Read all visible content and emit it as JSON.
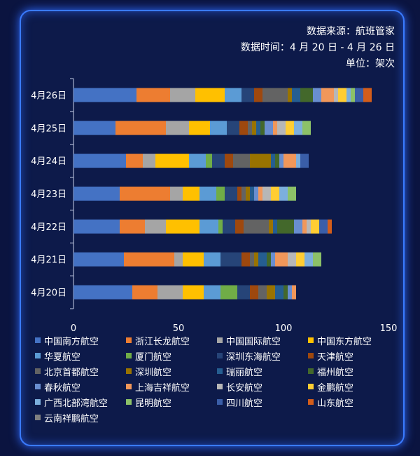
{
  "meta": {
    "source": "数据来源：航班管家",
    "period": "数据时间：4 月 20 日 - 4 月 26 日",
    "unit": "单位：架次"
  },
  "chart_data": {
    "type": "bar",
    "orientation": "horizontal",
    "stacked": true,
    "title": "",
    "xlabel": "",
    "ylabel": "",
    "xlim": [
      0,
      150
    ],
    "xticks": [
      0,
      50,
      100,
      150
    ],
    "grid": false,
    "legend_position": "bottom",
    "categories": [
      "4月26日",
      "4月25日",
      "4月24日",
      "4月23日",
      "4月22日",
      "4月21日",
      "4月20日"
    ],
    "series": [
      {
        "name": "中国南方航空",
        "color": "#4472c4",
        "values": [
          30,
          20,
          25,
          22,
          22,
          24,
          28
        ]
      },
      {
        "name": "浙江长龙航空",
        "color": "#ed7d31",
        "values": [
          16,
          24,
          8,
          24,
          12,
          24,
          12
        ]
      },
      {
        "name": "中国国际航空",
        "color": "#a5a5a5",
        "values": [
          12,
          11,
          6,
          6,
          10,
          4,
          12
        ]
      },
      {
        "name": "中国东方航空",
        "color": "#ffc000",
        "values": [
          14,
          10,
          16,
          8,
          16,
          10,
          10
        ]
      },
      {
        "name": "华夏航空",
        "color": "#5b9bd5",
        "values": [
          8,
          8,
          8,
          8,
          9,
          8,
          8
        ]
      },
      {
        "name": "厦门航空",
        "color": "#70ad47",
        "values": [
          0,
          0,
          3,
          4,
          2,
          0,
          8
        ]
      },
      {
        "name": "深圳东海航空",
        "color": "#264478",
        "values": [
          6,
          6,
          6,
          6,
          6,
          10,
          6
        ]
      },
      {
        "name": "天津航空",
        "color": "#9e480e",
        "values": [
          4,
          4,
          4,
          2,
          4,
          4,
          4
        ]
      },
      {
        "name": "北京首都航空",
        "color": "#636363",
        "values": [
          12,
          2,
          8,
          2,
          12,
          2,
          4
        ]
      },
      {
        "name": "深圳航空",
        "color": "#997300",
        "values": [
          2,
          2,
          10,
          2,
          2,
          2,
          4
        ]
      },
      {
        "name": "瑞丽航空",
        "color": "#255e91",
        "values": [
          4,
          2,
          2,
          2,
          2,
          4,
          4
        ]
      },
      {
        "name": "福州航空",
        "color": "#43682b",
        "values": [
          6,
          2,
          2,
          0,
          8,
          2,
          2
        ]
      },
      {
        "name": "春秋航空",
        "color": "#698ed0",
        "values": [
          4,
          4,
          2,
          2,
          4,
          2,
          2
        ]
      },
      {
        "name": "上海吉祥航空",
        "color": "#f1975a",
        "values": [
          6,
          2,
          6,
          2,
          2,
          6,
          2
        ]
      },
      {
        "name": "长安航空",
        "color": "#b7b7b7",
        "values": [
          2,
          4,
          0,
          4,
          2,
          4,
          0
        ]
      },
      {
        "name": "金鹏航空",
        "color": "#ffcd33",
        "values": [
          4,
          4,
          0,
          4,
          4,
          4,
          0
        ]
      },
      {
        "name": "广西北部湾航空",
        "color": "#7cafdd",
        "values": [
          2,
          4,
          2,
          4,
          0,
          4,
          0
        ]
      },
      {
        "name": "昆明航空",
        "color": "#8cc168",
        "values": [
          2,
          4,
          0,
          4,
          0,
          4,
          0
        ]
      },
      {
        "name": "四川航空",
        "color": "#3a5ea8",
        "values": [
          4,
          0,
          4,
          0,
          4,
          0,
          0
        ]
      },
      {
        "name": "山东航空",
        "color": "#d35d1a",
        "values": [
          4,
          0,
          0,
          0,
          2,
          0,
          0
        ]
      },
      {
        "name": "云南祥鹏航空",
        "color": "#808080",
        "values": [
          0,
          0,
          0,
          0,
          0,
          0,
          0
        ]
      }
    ]
  }
}
